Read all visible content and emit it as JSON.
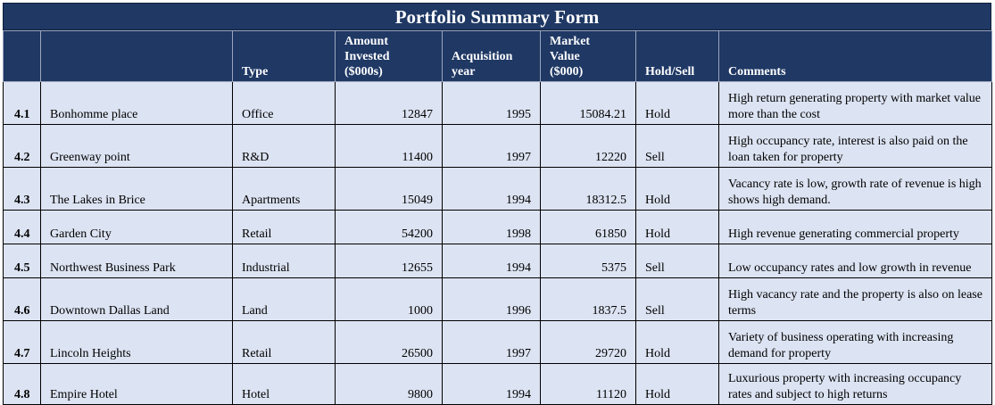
{
  "title": "Portfolio Summary Form",
  "headers": {
    "index": "",
    "name": "",
    "type": "Type",
    "amount_l1": "Amount",
    "amount_l2": "Invested",
    "amount_l3": "($000s)",
    "acq_l1": "Acquisition",
    "acq_l2": "year",
    "mv_l1": "Market",
    "mv_l2": "Value",
    "mv_l3": "($000)",
    "hold": "Hold/Sell",
    "comments": "Comments"
  },
  "rows": [
    {
      "index": "4.1",
      "name": "Bonhomme place",
      "type": "Office",
      "amount": "12847",
      "year": "1995",
      "market_value": "15084.21",
      "hold": "Hold",
      "comment": "High return generating property with market value more than the cost"
    },
    {
      "index": "4.2",
      "name": "Greenway point",
      "type": "R&D",
      "amount": "11400",
      "year": "1997",
      "market_value": "12220",
      "hold": "Sell",
      "comment": "High occupancy rate, interest is also paid on the loan taken for property"
    },
    {
      "index": "4.3",
      "name": "The Lakes in Brice",
      "type": "Apartments",
      "amount": "15049",
      "year": "1994",
      "market_value": "18312.5",
      "hold": "Hold",
      "comment": "Vacancy rate is low, growth rate of revenue is high shows high demand."
    },
    {
      "index": "4.4",
      "name": "Garden City",
      "type": "Retail",
      "amount": "54200",
      "year": "1998",
      "market_value": "61850",
      "hold": "Hold",
      "comment": "High revenue generating commercial property"
    },
    {
      "index": "4.5",
      "name": "Northwest Business Park",
      "type": "Industrial",
      "amount": "12655",
      "year": "1994",
      "market_value": "5375",
      "hold": "Sell",
      "comment": "Low occupancy rates and low growth in revenue"
    },
    {
      "index": "4.6",
      "name": "Downtown Dallas Land",
      "type": "Land",
      "amount": "1000",
      "year": "1996",
      "market_value": "1837.5",
      "hold": "Sell",
      "comment": "High vacancy rate and the property is also on lease terms"
    },
    {
      "index": "4.7",
      "name": "Lincoln Heights",
      "type": "Retail",
      "amount": "26500",
      "year": "1997",
      "market_value": "29720",
      "hold": "Hold",
      "comment": "Variety of business operating with increasing demand for property"
    },
    {
      "index": "4.8",
      "name": "Empire Hotel",
      "type": "Hotel",
      "amount": "9800",
      "year": "1994",
      "market_value": "11120",
      "hold": "Hold",
      "comment": "Luxurious property with increasing occupancy rates and subject to high returns"
    }
  ]
}
